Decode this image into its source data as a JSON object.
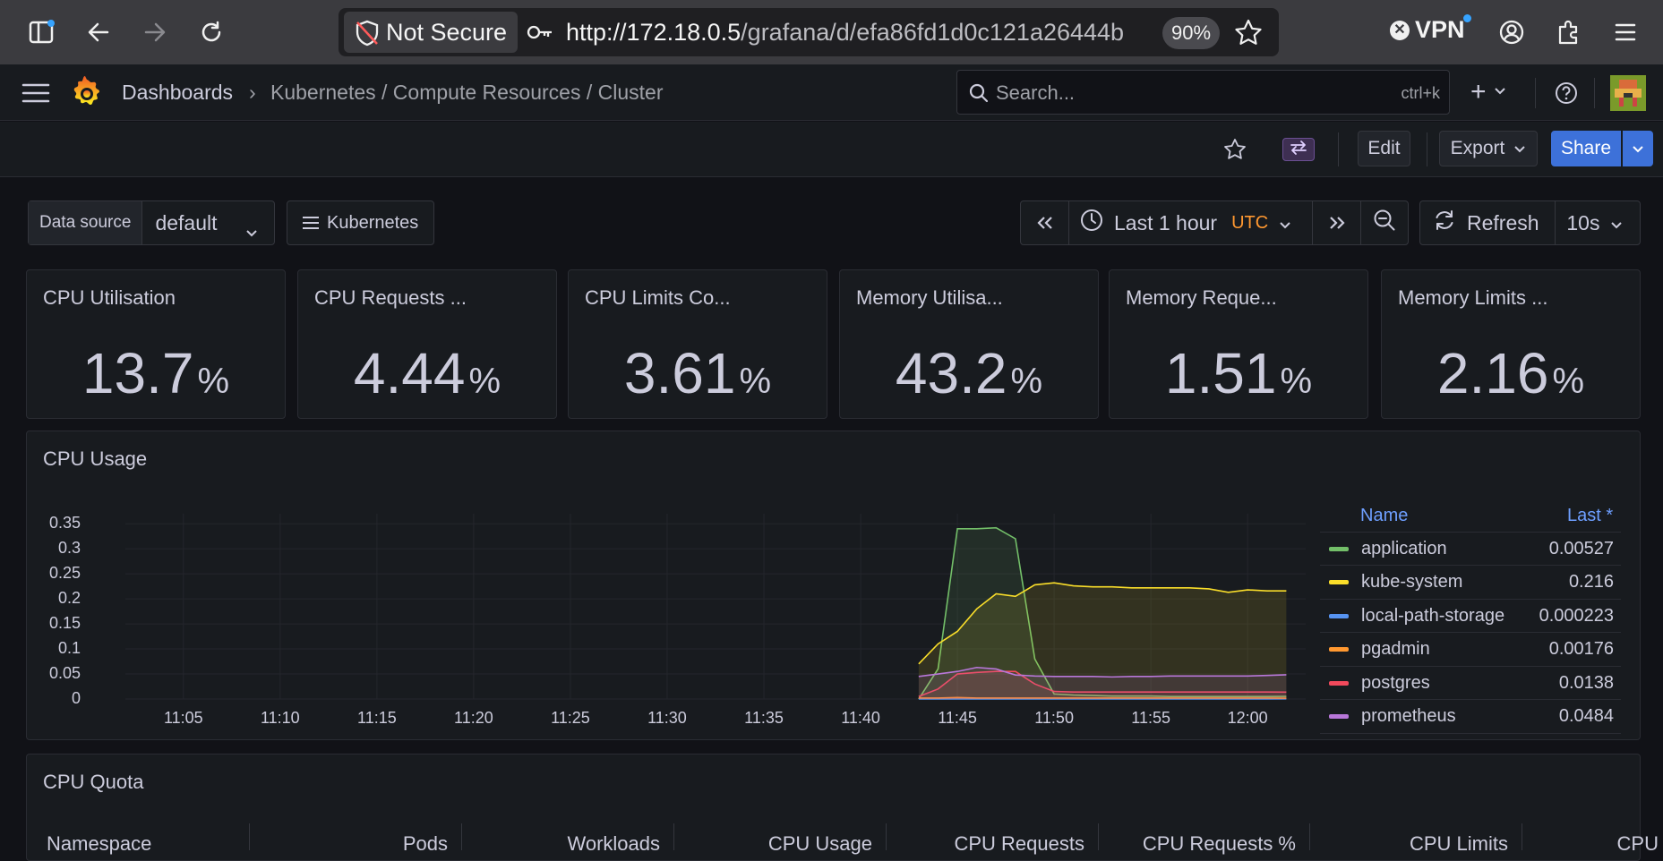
{
  "browser": {
    "security_label": "Not Secure",
    "url_host": "http://172.18.0.5",
    "url_path": "/grafana/d/efa86fd1d0c121a26444b",
    "zoom": "90%",
    "vpn_label": "VPN"
  },
  "nav": {
    "home_crumb": "Dashboards",
    "separator": "›",
    "dashboard_path": "Kubernetes / Compute Resources / Cluster",
    "search_placeholder": "Search...",
    "search_shortcut": "ctrl+k",
    "plus_label": "+"
  },
  "toolbar": {
    "edit_label": "Edit",
    "export_label": "Export",
    "share_label": "Share"
  },
  "controls": {
    "datasource_label": "Data source",
    "datasource_value": "default",
    "kubernetes_link": "Kubernetes",
    "time_range": "Last 1 hour",
    "timezone": "UTC",
    "refresh_label": "Refresh",
    "refresh_interval": "10s"
  },
  "stats": [
    {
      "title": "CPU Utilisation",
      "value": "13.7",
      "unit": "%"
    },
    {
      "title": "CPU Requests ...",
      "value": "4.44",
      "unit": "%"
    },
    {
      "title": "CPU Limits Co...",
      "value": "3.61",
      "unit": "%"
    },
    {
      "title": "Memory Utilisa...",
      "value": "43.2",
      "unit": "%"
    },
    {
      "title": "Memory Reque...",
      "value": "1.51",
      "unit": "%"
    },
    {
      "title": "Memory Limits ...",
      "value": "2.16",
      "unit": "%"
    }
  ],
  "cpu_usage": {
    "title": "CPU Usage",
    "legend_header_name": "Name",
    "legend_header_value": "Last *"
  },
  "chart_data": {
    "type": "line",
    "title": "CPU Usage",
    "xlabel": "",
    "ylabel": "",
    "x_ticks": [
      "11:05",
      "11:10",
      "11:15",
      "11:20",
      "11:25",
      "11:30",
      "11:35",
      "11:40",
      "11:45",
      "11:50",
      "11:55",
      "12:00"
    ],
    "y_ticks": [
      "0.35",
      "0.3",
      "0.25",
      "0.2",
      "0.15",
      "0.1",
      "0.05",
      "0"
    ],
    "ylim": [
      0,
      0.37
    ],
    "grid": true,
    "legend_position": "right",
    "x": [
      "11:43",
      "11:44",
      "11:45",
      "11:46",
      "11:47",
      "11:48",
      "11:49",
      "11:50",
      "11:51",
      "11:52",
      "11:53",
      "11:54",
      "11:55",
      "11:56",
      "11:57",
      "11:58",
      "11:59",
      "12:00",
      "12:01",
      "12:02"
    ],
    "series": [
      {
        "name": "application",
        "color": "#73bf69",
        "last": "0.00527",
        "values": [
          0,
          0.06,
          0.34,
          0.34,
          0.342,
          0.32,
          0.08,
          0.01,
          0.008,
          0.007,
          0.006,
          0.006,
          0.006,
          0.005,
          0.005,
          0.005,
          0.005,
          0.005,
          0.005,
          0.00527
        ]
      },
      {
        "name": "kube-system",
        "color": "#fade2a",
        "last": "0.216",
        "values": [
          0.07,
          0.11,
          0.135,
          0.18,
          0.21,
          0.205,
          0.228,
          0.232,
          0.226,
          0.224,
          0.224,
          0.222,
          0.222,
          0.222,
          0.222,
          0.22,
          0.213,
          0.218,
          0.216,
          0.216
        ]
      },
      {
        "name": "local-path-storage",
        "color": "#5794f2",
        "last": "0.000223",
        "values": [
          0,
          0.0002,
          0.0002,
          0.0002,
          0.0002,
          0.0002,
          0.0002,
          0.0002,
          0.0002,
          0.0002,
          0.0002,
          0.0002,
          0.0002,
          0.0002,
          0.0002,
          0.0002,
          0.0002,
          0.0002,
          0.0002,
          0.000223
        ]
      },
      {
        "name": "pgadmin",
        "color": "#ff9830",
        "last": "0.00176",
        "values": [
          0.002,
          0.002,
          0.003,
          0.002,
          0.002,
          0.002,
          0.002,
          0.002,
          0.002,
          0.002,
          0.002,
          0.002,
          0.002,
          0.002,
          0.002,
          0.002,
          0.002,
          0.002,
          0.002,
          0.00176
        ]
      },
      {
        "name": "postgres",
        "color": "#f2495c",
        "last": "0.0138",
        "values": [
          0.005,
          0.02,
          0.05,
          0.053,
          0.055,
          0.055,
          0.03,
          0.015,
          0.014,
          0.014,
          0.014,
          0.014,
          0.014,
          0.014,
          0.014,
          0.014,
          0.014,
          0.014,
          0.014,
          0.0138
        ]
      },
      {
        "name": "prometheus",
        "color": "#b877d9",
        "last": "0.0484",
        "values": [
          0.045,
          0.05,
          0.055,
          0.063,
          0.06,
          0.048,
          0.046,
          0.045,
          0.045,
          0.045,
          0.044,
          0.045,
          0.045,
          0.046,
          0.046,
          0.046,
          0.046,
          0.046,
          0.047,
          0.0484
        ]
      }
    ]
  },
  "cpu_quota": {
    "title": "CPU Quota",
    "columns": [
      "Namespace",
      "Pods",
      "Workloads",
      "CPU Usage",
      "CPU Requests",
      "CPU Requests %",
      "CPU Limits",
      "CPU"
    ]
  }
}
